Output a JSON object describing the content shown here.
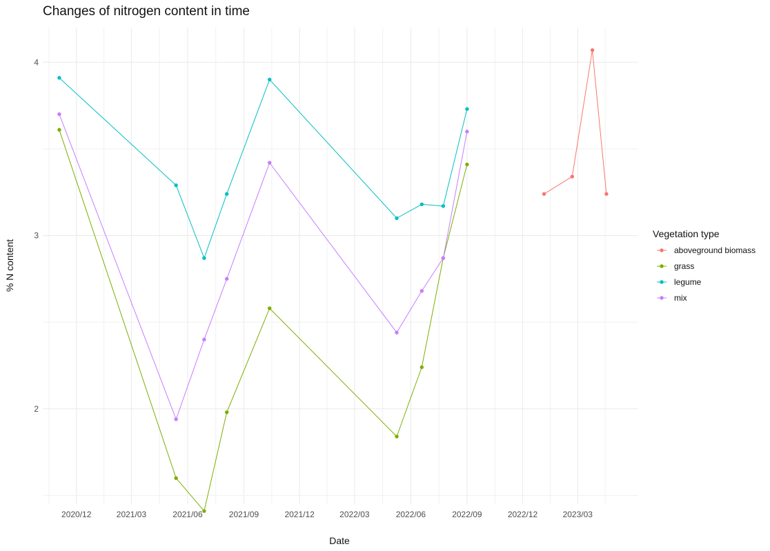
{
  "chart_data": {
    "type": "line",
    "title": "Changes of nitrogen content in time",
    "xlabel": "Date",
    "ylabel": "% N content",
    "x_tick_labels": [
      "2020/12",
      "2021/03",
      "2021/06",
      "2021/09",
      "2021/12",
      "2022/03",
      "2022/06",
      "2022/09",
      "2022/12",
      "2023/03"
    ],
    "y_tick_labels": [
      "2",
      "3",
      "4"
    ],
    "ylim": [
      1.45,
      4.2
    ],
    "xlim": [
      "2020-10-07",
      "2023-06-08"
    ],
    "grid": true,
    "legend": {
      "title": "Vegetation type",
      "position": "right"
    },
    "series": [
      {
        "name": "aboveground biomass",
        "color": "#F8766D",
        "points": [
          {
            "x": "2023-01-05",
            "y": 3.24
          },
          {
            "x": "2023-02-20",
            "y": 3.34
          },
          {
            "x": "2023-03-25",
            "y": 4.07
          },
          {
            "x": "2023-04-17",
            "y": 3.24
          }
        ]
      },
      {
        "name": "grass",
        "color": "#7CAE00",
        "points": [
          {
            "x": "2020-11-03",
            "y": 3.61
          },
          {
            "x": "2021-05-13",
            "y": 1.6
          },
          {
            "x": "2021-06-28",
            "y": 1.41
          },
          {
            "x": "2021-08-04",
            "y": 1.98
          },
          {
            "x": "2021-10-13",
            "y": 2.58
          },
          {
            "x": "2022-05-09",
            "y": 1.84
          },
          {
            "x": "2022-06-19",
            "y": 2.24
          },
          {
            "x": "2022-07-24",
            "y": 2.87
          },
          {
            "x": "2022-09-01",
            "y": 3.41
          }
        ]
      },
      {
        "name": "legume",
        "color": "#00BFC4",
        "points": [
          {
            "x": "2020-11-03",
            "y": 3.91
          },
          {
            "x": "2021-05-13",
            "y": 3.29
          },
          {
            "x": "2021-06-28",
            "y": 2.87
          },
          {
            "x": "2021-08-04",
            "y": 3.24
          },
          {
            "x": "2021-10-13",
            "y": 3.9
          },
          {
            "x": "2022-05-09",
            "y": 3.1
          },
          {
            "x": "2022-06-19",
            "y": 3.18
          },
          {
            "x": "2022-07-24",
            "y": 3.17
          },
          {
            "x": "2022-09-01",
            "y": 3.73
          }
        ]
      },
      {
        "name": "mix",
        "color": "#C77CFF",
        "points": [
          {
            "x": "2020-11-03",
            "y": 3.7
          },
          {
            "x": "2021-05-13",
            "y": 1.94
          },
          {
            "x": "2021-06-28",
            "y": 2.4
          },
          {
            "x": "2021-08-04",
            "y": 2.75
          },
          {
            "x": "2021-10-13",
            "y": 3.42
          },
          {
            "x": "2022-05-09",
            "y": 2.44
          },
          {
            "x": "2022-06-19",
            "y": 2.68
          },
          {
            "x": "2022-07-24",
            "y": 2.87
          },
          {
            "x": "2022-09-01",
            "y": 3.6
          }
        ]
      }
    ]
  }
}
